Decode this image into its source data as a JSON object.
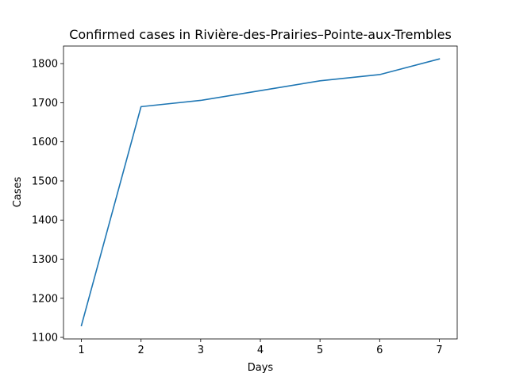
{
  "chart_data": {
    "type": "line",
    "title": "Confirmed cases in Rivière-des-Prairies–Pointe-aux-Trembles",
    "xlabel": "Days",
    "ylabel": "Cases",
    "x": [
      1,
      2,
      3,
      4,
      5,
      6,
      7
    ],
    "series": [
      {
        "values": [
          1130,
          1690,
          1706,
          1731,
          1756,
          1772,
          1812
        ]
      }
    ],
    "xlim": [
      0.7,
      7.3
    ],
    "ylim": [
      1096,
      1845
    ],
    "x_ticks": [
      1,
      2,
      3,
      4,
      5,
      6,
      7
    ],
    "y_ticks": [
      1100,
      1200,
      1300,
      1400,
      1500,
      1600,
      1700,
      1800
    ],
    "grid": false,
    "line_color": "#1f77b4"
  }
}
